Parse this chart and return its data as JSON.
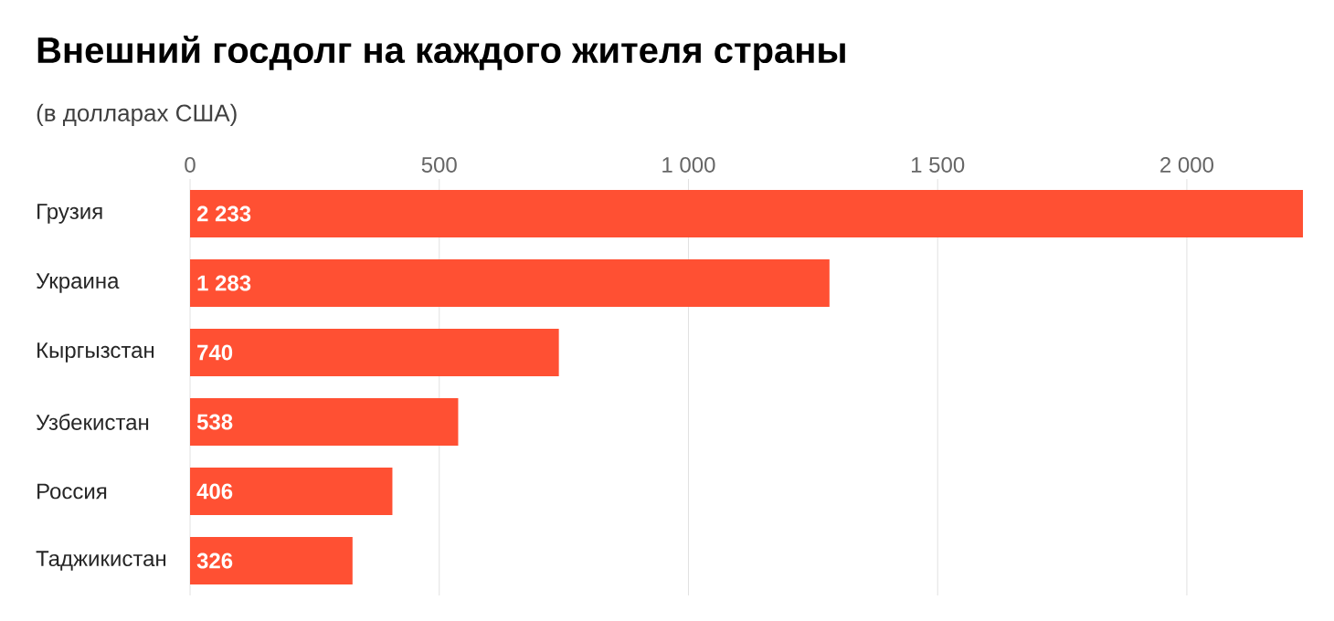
{
  "chart_data": {
    "type": "bar",
    "orientation": "horizontal",
    "title": "Внешний госдолг на каждого жителя страны",
    "subtitle": "(в долларах США)",
    "categories": [
      "Грузия",
      "Украина",
      "Кыргызстан",
      "Узбекистан",
      "Россия",
      "Таджикистан"
    ],
    "values": [
      2233,
      1283,
      740,
      538,
      406,
      326
    ],
    "value_labels": [
      "2 233",
      "1 283",
      "740",
      "538",
      "406",
      "326"
    ],
    "color": "#ff5033",
    "xlim": [
      0,
      2233
    ],
    "xticks": [
      0,
      500,
      {
        "value": 1000,
        "label": "1 000"
      },
      {
        "value": 1500,
        "label": "1 500"
      },
      {
        "value": 2000,
        "label": "2 000"
      }
    ],
    "grid": "x"
  }
}
